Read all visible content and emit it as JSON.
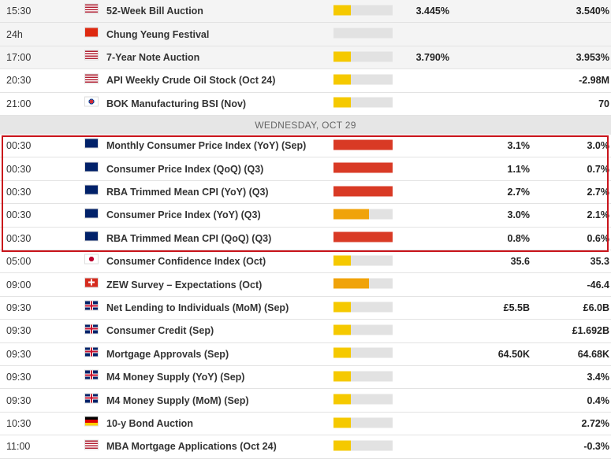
{
  "rows_before": [
    {
      "time": "15:30",
      "event": "52-Week Bill Auction",
      "importance": 1,
      "actual": "3.445%",
      "forecast": null,
      "previous": "3.540%"
    },
    {
      "time": "24h",
      "event": "Chung Yeung Festival",
      "importance": 0,
      "actual": null,
      "forecast": null,
      "previous": null
    },
    {
      "time": "17:00",
      "event": "7-Year Note Auction",
      "importance": 1,
      "actual": "3.790%",
      "forecast": null,
      "previous": "3.953%"
    },
    {
      "time": "20:30",
      "event": "API Weekly Crude Oil Stock (Oct 24)",
      "importance": 1,
      "actual": null,
      "forecast": null,
      "previous": "-2.98M"
    },
    {
      "time": "21:00",
      "event": "BOK Manufacturing BSI (Nov)",
      "importance": 1,
      "actual": null,
      "forecast": null,
      "previous": "70"
    }
  ],
  "day_header": "WEDNESDAY, OCT 29",
  "rows_after": [
    {
      "time": "00:30",
      "event": "Monthly Consumer Price Index (YoY) (Sep)",
      "importance": 3,
      "actual": null,
      "forecast": "3.1%",
      "previous": "3.0%"
    },
    {
      "time": "00:30",
      "event": "Consumer Price Index (QoQ) (Q3)",
      "importance": 3,
      "actual": null,
      "forecast": "1.1%",
      "previous": "0.7%"
    },
    {
      "time": "00:30",
      "event": "RBA Trimmed Mean CPI (YoY) (Q3)",
      "importance": 3,
      "actual": null,
      "forecast": "2.7%",
      "previous": "2.7%"
    },
    {
      "time": "00:30",
      "event": "Consumer Price Index (YoY) (Q3)",
      "importance": 2,
      "actual": null,
      "forecast": "3.0%",
      "previous": "2.1%"
    },
    {
      "time": "00:30",
      "event": "RBA Trimmed Mean CPI (QoQ) (Q3)",
      "importance": 3,
      "actual": null,
      "forecast": "0.8%",
      "previous": "0.6%"
    },
    {
      "time": "05:00",
      "event": "Consumer Confidence Index (Oct)",
      "importance": 1,
      "actual": null,
      "forecast": "35.6",
      "previous": "35.3"
    },
    {
      "time": "09:00",
      "event": "ZEW Survey – Expectations (Oct)",
      "importance": 2,
      "actual": null,
      "forecast": null,
      "previous": "-46.4"
    },
    {
      "time": "09:30",
      "event": "Net Lending to Individuals (MoM) (Sep)",
      "importance": 1,
      "actual": null,
      "forecast": "£5.5B",
      "previous": "£6.0B"
    },
    {
      "time": "09:30",
      "event": "Consumer Credit (Sep)",
      "importance": 1,
      "actual": null,
      "forecast": null,
      "previous": "£1.692B"
    },
    {
      "time": "09:30",
      "event": "Mortgage Approvals (Sep)",
      "importance": 1,
      "actual": null,
      "forecast": "64.50K",
      "previous": "64.68K"
    },
    {
      "time": "09:30",
      "event": "M4 Money Supply (YoY) (Sep)",
      "importance": 1,
      "actual": null,
      "forecast": null,
      "previous": "3.4%"
    },
    {
      "time": "09:30",
      "event": "M4 Money Supply (MoM) (Sep)",
      "importance": 1,
      "actual": null,
      "forecast": null,
      "previous": "0.4%"
    },
    {
      "time": "10:30",
      "event": "10-y Bond Auction",
      "importance": 1,
      "actual": null,
      "forecast": null,
      "previous": "2.72%"
    },
    {
      "time": "11:00",
      "event": "MBA Mortgage Applications (Oct 24)",
      "importance": 1,
      "actual": null,
      "forecast": null,
      "previous": "-0.3%"
    }
  ]
}
